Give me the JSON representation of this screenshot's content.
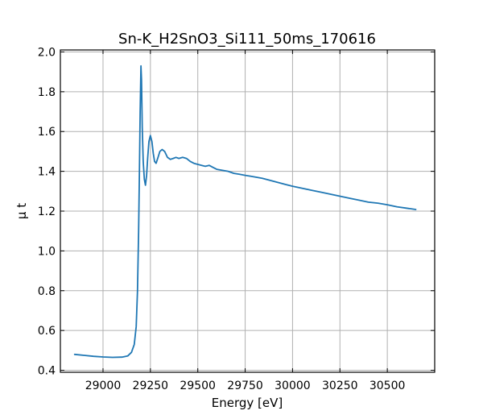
{
  "chart_data": {
    "type": "line",
    "title": "Sn-K_H2SnO3_Si111_50ms_170616",
    "xlabel": "Energy [eV]",
    "ylabel": "μ t",
    "xlim": [
      28775,
      30750
    ],
    "ylim": [
      0.39,
      2.01
    ],
    "xticks": [
      29000,
      29250,
      29500,
      29750,
      30000,
      30250,
      30500
    ],
    "yticks": [
      0.4,
      0.6,
      0.8,
      1.0,
      1.2,
      1.4,
      1.6,
      1.8,
      2.0
    ],
    "xtick_labels": [
      "29000",
      "29250",
      "29500",
      "29750",
      "30000",
      "30250",
      "30500"
    ],
    "ytick_labels": [
      "0.4",
      "0.6",
      "0.8",
      "1.0",
      "1.2",
      "1.4",
      "1.6",
      "1.8",
      "2.0"
    ],
    "grid": true,
    "color": "#1f77b4",
    "series": [
      {
        "x": [
          28850,
          28900,
          28950,
          29000,
          29050,
          29100,
          29130,
          29150,
          29165,
          29175,
          29182,
          29188,
          29192,
          29196,
          29200,
          29203,
          29207,
          29212,
          29218,
          29224,
          29230,
          29236,
          29242,
          29250,
          29258,
          29265,
          29272,
          29280,
          29290,
          29300,
          29312,
          29325,
          29340,
          29355,
          29370,
          29385,
          29400,
          29420,
          29440,
          29460,
          29480,
          29500,
          29520,
          29540,
          29560,
          29580,
          29600,
          29630,
          29660,
          29690,
          29720,
          29750,
          29780,
          29810,
          29840,
          29880,
          29920,
          29960,
          30000,
          30050,
          30100,
          30150,
          30200,
          30250,
          30300,
          30350,
          30400,
          30450,
          30500,
          30550,
          30600,
          30650
        ],
        "y": [
          0.48,
          0.475,
          0.47,
          0.467,
          0.465,
          0.466,
          0.472,
          0.49,
          0.53,
          0.62,
          0.8,
          1.1,
          1.4,
          1.7,
          1.93,
          1.86,
          1.62,
          1.45,
          1.36,
          1.33,
          1.38,
          1.47,
          1.55,
          1.58,
          1.55,
          1.49,
          1.45,
          1.44,
          1.47,
          1.5,
          1.51,
          1.5,
          1.47,
          1.46,
          1.465,
          1.47,
          1.465,
          1.47,
          1.465,
          1.45,
          1.44,
          1.435,
          1.43,
          1.425,
          1.43,
          1.42,
          1.41,
          1.405,
          1.4,
          1.39,
          1.385,
          1.38,
          1.375,
          1.37,
          1.365,
          1.355,
          1.345,
          1.335,
          1.325,
          1.315,
          1.305,
          1.295,
          1.285,
          1.275,
          1.265,
          1.255,
          1.245,
          1.24,
          1.232,
          1.222,
          1.215,
          1.208
        ]
      }
    ]
  }
}
